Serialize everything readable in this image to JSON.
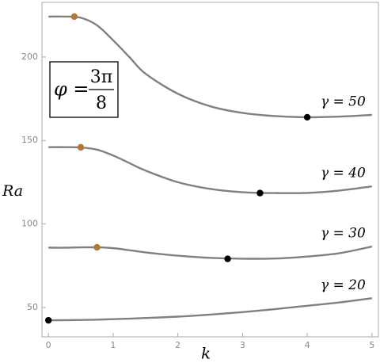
{
  "chart_data": {
    "type": "line",
    "xlabel": "k",
    "ylabel": "Ra",
    "xlim": [
      -0.1,
      5.1
    ],
    "ylim": [
      32.4,
      232.7
    ],
    "xticks": [
      0,
      1,
      2,
      3,
      4,
      5
    ],
    "yticks": [
      50,
      100,
      150,
      200
    ],
    "grid": false,
    "annotation": {
      "lhs": "φ =",
      "numerator": "3π",
      "denominator": "8"
    },
    "x": [
      0,
      0.25,
      0.5,
      0.75,
      1,
      1.25,
      1.5,
      2,
      2.5,
      3,
      3.5,
      4,
      4.5,
      5
    ],
    "series": [
      {
        "name": "γ = 50",
        "color": "#808080",
        "values": [
          224.2,
          224.2,
          223.5,
          219,
          210,
          200,
          190,
          178,
          170.5,
          166.5,
          164.6,
          163.9,
          164.3,
          165.3
        ]
      },
      {
        "name": "γ = 40",
        "color": "#808080",
        "values": [
          146,
          146,
          145.8,
          144.5,
          141,
          136.5,
          132,
          125,
          121,
          119,
          118.5,
          118.6,
          120,
          122.5
        ]
      },
      {
        "name": "γ = 30",
        "color": "#808080",
        "values": [
          85.8,
          85.8,
          86,
          86,
          85.5,
          84.3,
          83,
          81,
          79.7,
          79.2,
          79.3,
          80.5,
          82.5,
          86.5
        ]
      },
      {
        "name": "γ = 20",
        "color": "#808080",
        "values": [
          42.3,
          42.4,
          42.5,
          42.7,
          43,
          43.3,
          43.7,
          44.5,
          45.7,
          47.2,
          49,
          51,
          53,
          55.5
        ]
      }
    ],
    "markers": [
      {
        "color": "#000000",
        "x": [
          4,
          3.27,
          2.77,
          0
        ],
        "values": [
          163.9,
          118.5,
          79.1,
          42.3
        ]
      },
      {
        "color": "#b5763a",
        "x": [
          0.4,
          0.5,
          0.75
        ],
        "values": [
          224.2,
          145.9,
          86
        ]
      }
    ]
  }
}
